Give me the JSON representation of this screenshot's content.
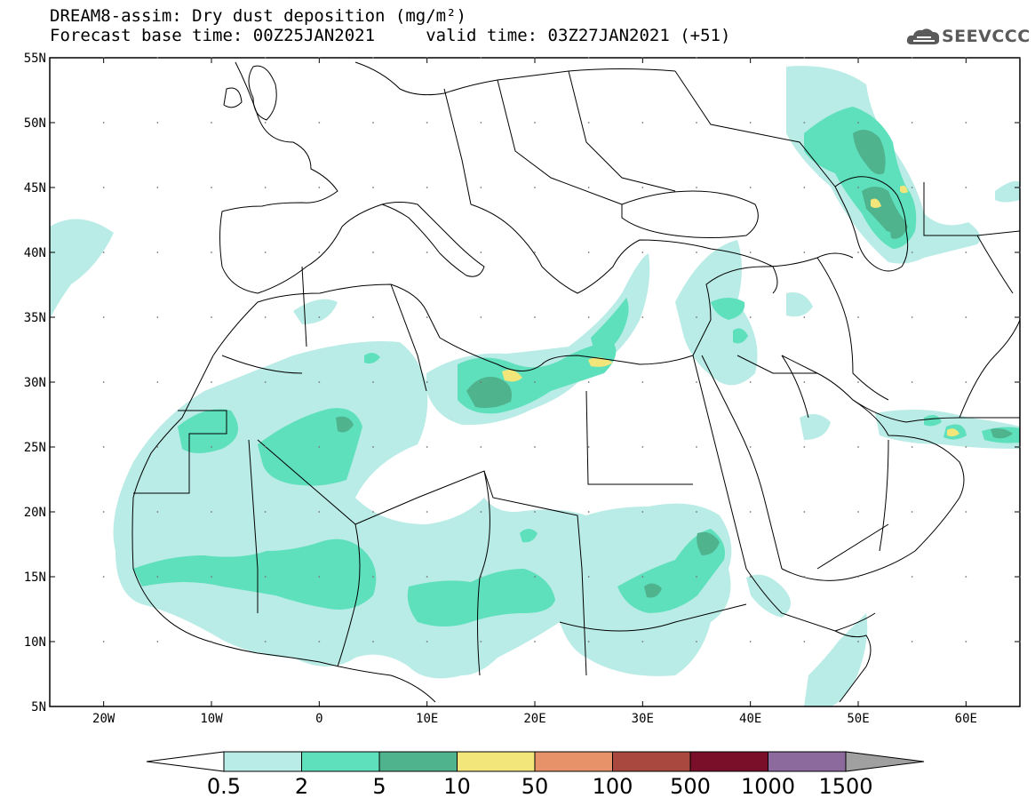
{
  "header": {
    "title_line1": "DREAM8-assim: Dry dust deposition (mg/m²)",
    "title_line2": "Forecast base time: 00Z25JAN2021     valid time: 03Z27JAN2021 (+51)",
    "logo_text": "SEEVCCC"
  },
  "map": {
    "lon_range": [
      -25,
      65
    ],
    "lat_range": [
      5,
      55
    ],
    "lat_labels": [
      "5N",
      "10N",
      "15N",
      "20N",
      "25N",
      "30N",
      "35N",
      "40N",
      "45N",
      "50N",
      "55N"
    ],
    "lat_values": [
      5,
      10,
      15,
      20,
      25,
      30,
      35,
      40,
      45,
      50,
      55
    ],
    "lon_labels": [
      "20W",
      "10W",
      "0",
      "10E",
      "20E",
      "30E",
      "40E",
      "50E",
      "60E"
    ],
    "lon_values": [
      -20,
      -10,
      0,
      10,
      20,
      30,
      40,
      50,
      60
    ],
    "tick_dots": true
  },
  "legend": {
    "labels": [
      "0.5",
      "2",
      "5",
      "10",
      "50",
      "100",
      "500",
      "1000",
      "1500"
    ],
    "colors": [
      "#b9ece6",
      "#5fe0bc",
      "#4fb38e",
      "#f2e67a",
      "#e8926a",
      "#a8483e",
      "#7a0f2a",
      "#8c6a9e"
    ],
    "under_color": "#ffffff",
    "over_color": "#a0a0a0"
  },
  "colors": {
    "level1": "#b9ece6",
    "level2": "#5fe0bc",
    "level3": "#4fb38e",
    "level4": "#f2e67a"
  }
}
